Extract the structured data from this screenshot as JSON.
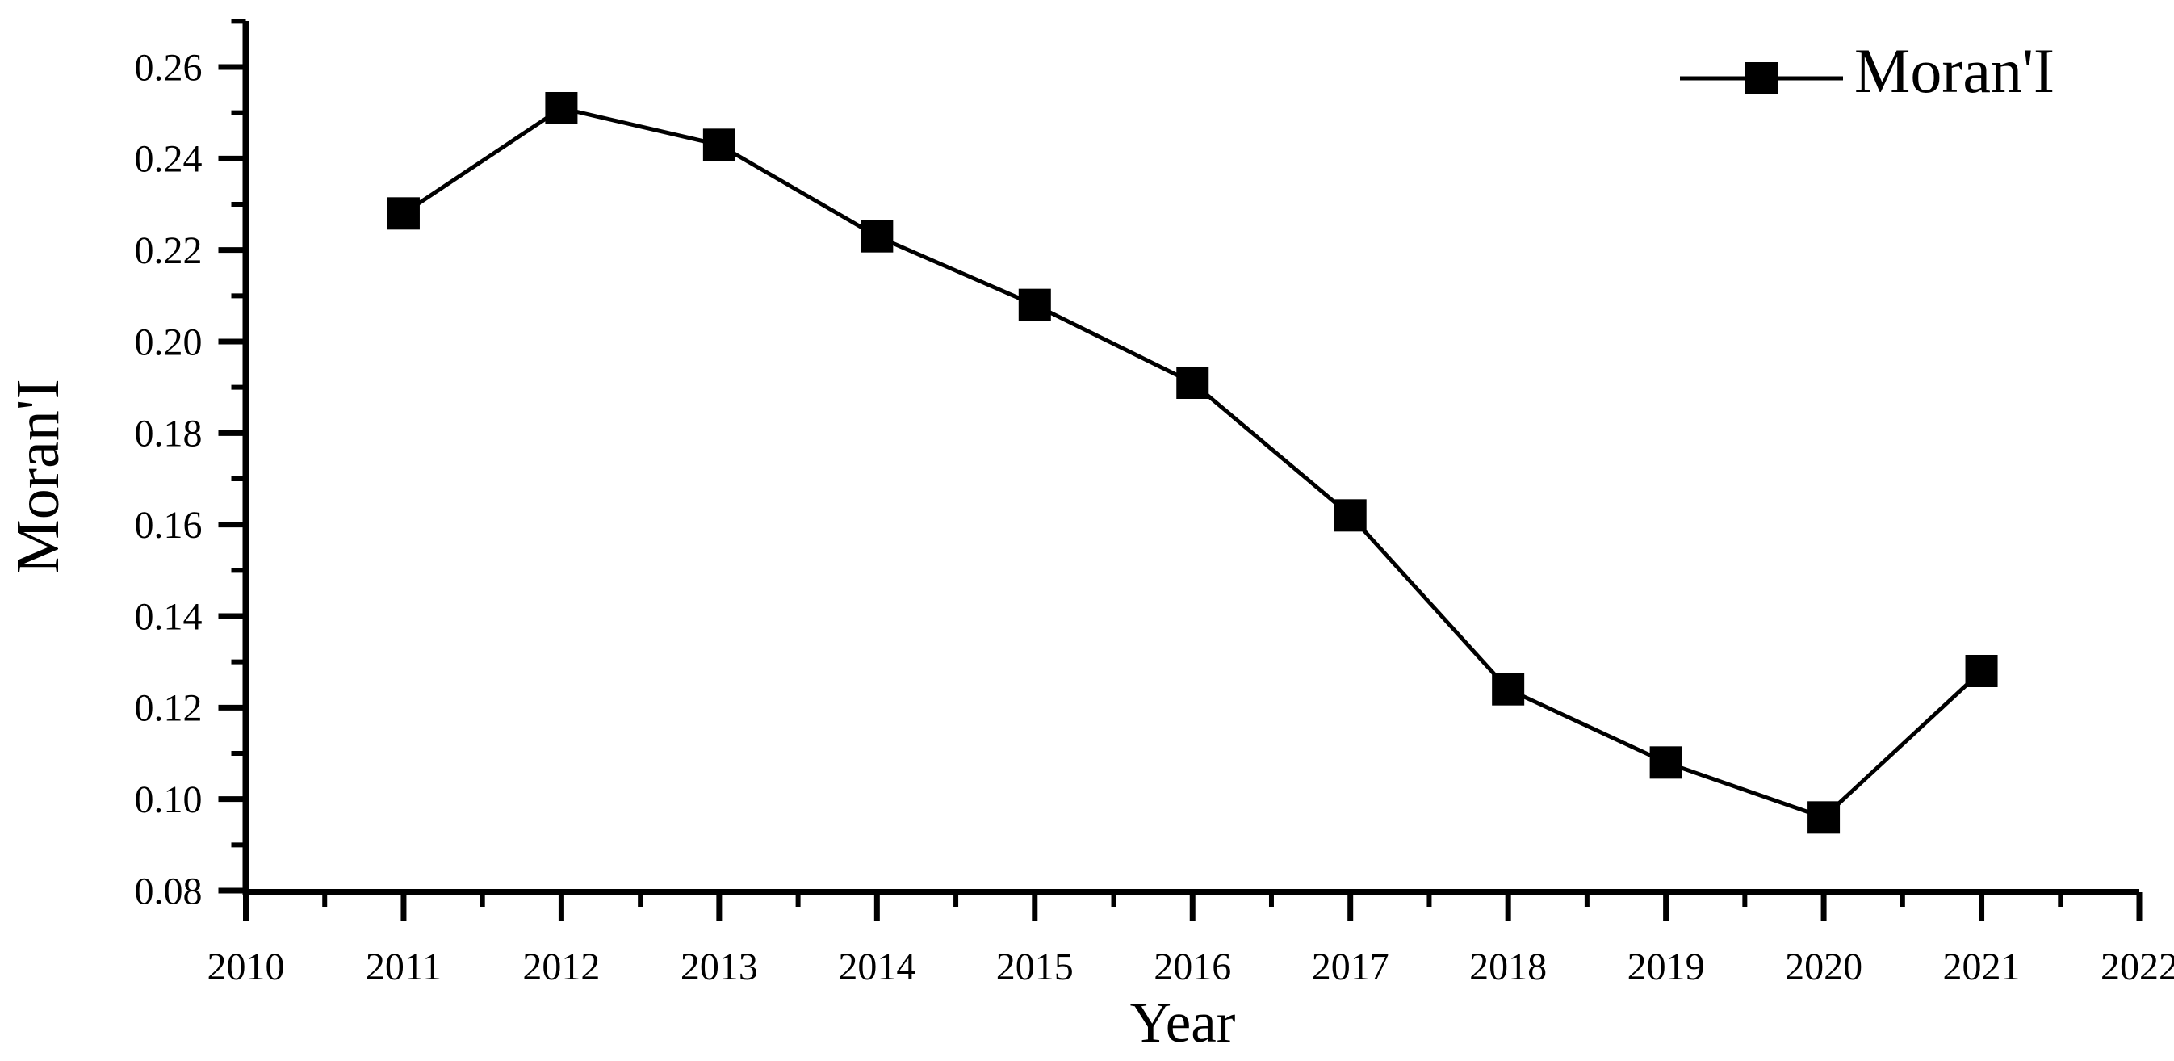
{
  "figure": {
    "background": "#ffffff",
    "foreground": "#000000"
  },
  "chart_data": {
    "type": "line",
    "title": "",
    "xlabel": "Year",
    "ylabel": "Moran'I",
    "grid": false,
    "legend": {
      "position": "top-right",
      "entries": [
        {
          "label": "Moran'I",
          "marker": "filled-square",
          "line": "solid"
        }
      ]
    },
    "x": [
      2011,
      2012,
      2013,
      2014,
      2015,
      2016,
      2017,
      2018,
      2019,
      2020,
      2021
    ],
    "series": [
      {
        "name": "Moran'I",
        "color": "#000000",
        "marker": "square",
        "values": [
          0.228,
          0.251,
          0.243,
          0.223,
          0.208,
          0.191,
          0.162,
          0.124,
          0.108,
          0.096,
          0.128
        ]
      }
    ],
    "x_axis": {
      "min": 2010,
      "max": 2022,
      "major_ticks": [
        2010,
        2011,
        2012,
        2013,
        2014,
        2015,
        2016,
        2017,
        2018,
        2019,
        2020,
        2021,
        2022
      ],
      "tick_labels": [
        "2010",
        "2011",
        "2012",
        "2013",
        "2014",
        "2015",
        "2016",
        "2017",
        "2018",
        "2019",
        "2020",
        "2021",
        "2022"
      ],
      "minor_ticks": [
        2010.5,
        2011.5,
        2012.5,
        2013.5,
        2014.5,
        2015.5,
        2016.5,
        2017.5,
        2018.5,
        2019.5,
        2020.5,
        2021.5
      ]
    },
    "y_axis": {
      "min": 0.08,
      "max": 0.27,
      "major_ticks": [
        0.08,
        0.1,
        0.12,
        0.14,
        0.16,
        0.18,
        0.2,
        0.22,
        0.24,
        0.26
      ],
      "tick_labels": [
        "0.08",
        "0.10",
        "0.12",
        "0.14",
        "0.16",
        "0.18",
        "0.20",
        "0.22",
        "0.24",
        "0.26"
      ],
      "minor_ticks": [
        0.09,
        0.11,
        0.13,
        0.15,
        0.17,
        0.19,
        0.21,
        0.23,
        0.25,
        0.27
      ]
    }
  }
}
